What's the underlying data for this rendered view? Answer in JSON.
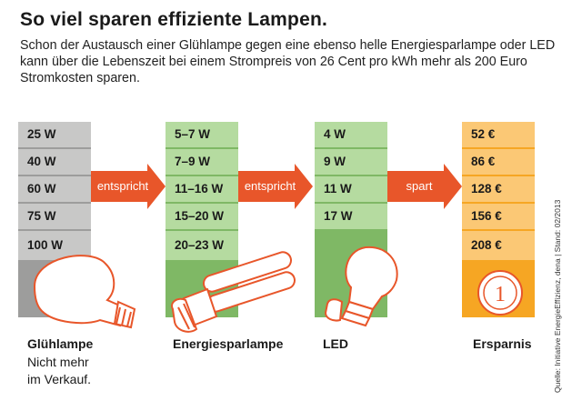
{
  "title": "So viel sparen effiziente Lampen.",
  "subtitle": "Schon der Austausch einer Glühlampe gegen eine ebenso helle Energiesparlampe oder LED kann über die Lebenszeit bei einem Strompreis von 26 Cent pro kWh mehr als 200 Euro Stromkosten sparen.",
  "columns": {
    "gluehlampe": {
      "rows": [
        "25 W",
        "40 W",
        "60 W",
        "75 W",
        "100 W"
      ],
      "label": "Glühlampe",
      "sublabel_1": "Nicht mehr",
      "sublabel_2": "im Verkauf.",
      "color": "#9d9d9c",
      "light": "#c8c8c7"
    },
    "energiespar": {
      "rows": [
        "5–7 W",
        "7–9 W",
        "11–16 W",
        "15–20 W",
        "20–23 W"
      ],
      "label": "Energiesparlampe",
      "color": "#7fb865",
      "light": "#b5dba0"
    },
    "led": {
      "rows": [
        "4 W",
        "9 W",
        "11 W",
        "17 W"
      ],
      "label": "LED",
      "color": "#7fb865",
      "light": "#b5dba0"
    },
    "ersparnis": {
      "rows": [
        "52 €",
        "86 €",
        "128 €",
        "156 €",
        "208 €"
      ],
      "label": "Ersparnis",
      "color": "#f6a623",
      "light": "#fbc875",
      "coin": "1"
    }
  },
  "arrows": [
    {
      "label": "entspricht",
      "color": "#e8562a"
    },
    {
      "label": "entspricht",
      "color": "#e8562a"
    },
    {
      "label": "spart",
      "color": "#e8562a"
    }
  ],
  "source": "Quelle: Initiative EnergieEffizienz, dena | Stand: 02/2013"
}
